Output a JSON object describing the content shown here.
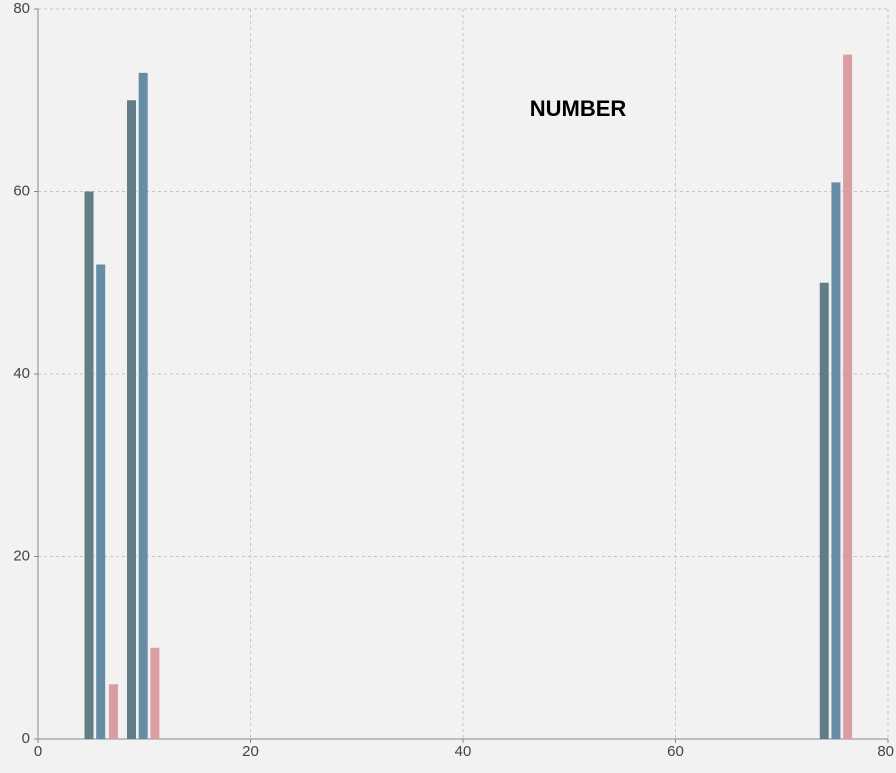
{
  "chart_data": {
    "type": "bar",
    "title": "NUMBER",
    "series": [
      {
        "color": "#637d87",
        "x": [
          4.8,
          8.8,
          74
        ],
        "values": [
          60,
          70,
          50
        ]
      },
      {
        "color": "#668da5",
        "x": [
          5.9,
          9.9,
          75.1
        ],
        "values": [
          52,
          73,
          61
        ]
      },
      {
        "color": "#d99da2",
        "x": [
          7.1,
          11,
          76.2
        ],
        "values": [
          6,
          10,
          75
        ]
      }
    ],
    "xlim": [
      0,
      80
    ],
    "xticks": [
      0,
      20,
      40,
      60,
      80
    ],
    "ylim": [
      0,
      80
    ],
    "yticks": [
      0,
      20,
      40,
      60,
      80
    ],
    "grid": true
  }
}
